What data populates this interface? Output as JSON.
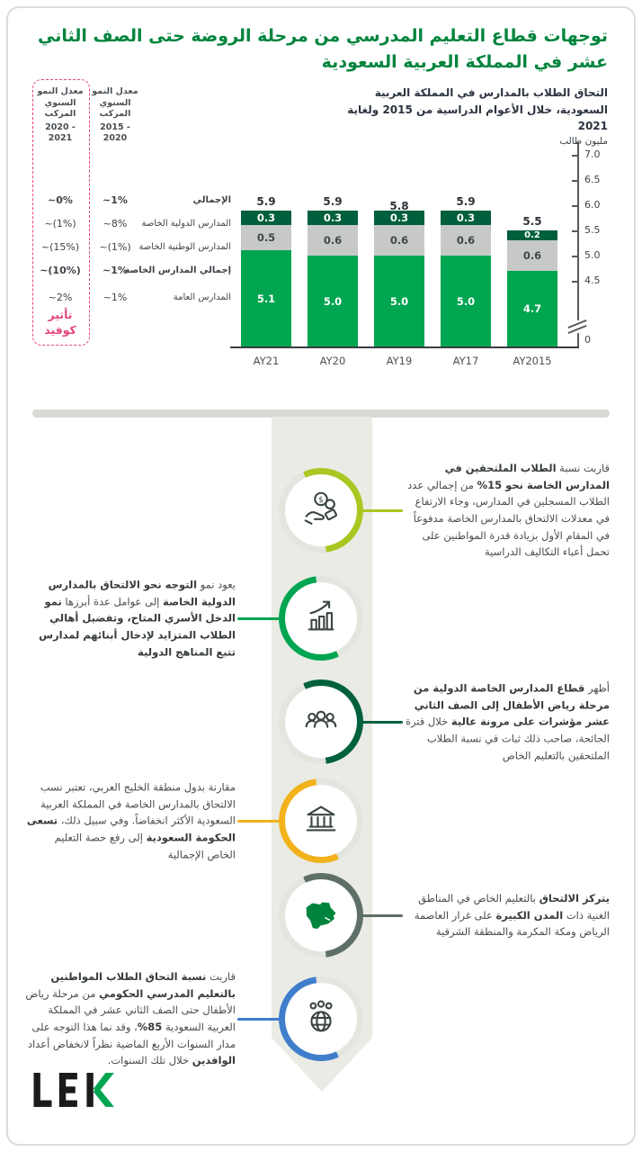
{
  "page": {
    "title": "توجهات قطاع التعليم المدرسي من مرحلة الروضة حتى الصف الثاني عشر في المملكة العربية السعودية"
  },
  "chart_data": {
    "type": "bar",
    "stacked": true,
    "title": "التحاق الطلاب بالمدارس في المملكة العربية السعودية، خلال الأعوام الدراسية من 2015 ولغاية 2021",
    "unit_label": "مليون طالب",
    "categories": [
      "AY21",
      "AY20",
      "AY19",
      "AY17",
      "AY2015"
    ],
    "series": [
      {
        "name": "المدارس العامة",
        "color": "#00A550",
        "label_color": "#ffffff",
        "values": [
          5.1,
          5.0,
          5.0,
          5.0,
          4.7
        ]
      },
      {
        "name": "المدارس الوطنية الخاصة",
        "color": "#C7C9C7",
        "label_color": "#40454A",
        "values": [
          0.5,
          0.6,
          0.6,
          0.6,
          0.6
        ]
      },
      {
        "name": "المدارس الدولية الخاصة",
        "color": "#005F3C",
        "label_color": "#ffffff",
        "values": [
          0.3,
          0.3,
          0.3,
          0.3,
          0.2
        ]
      }
    ],
    "totals": [
      5.9,
      5.9,
      5.8,
      5.9,
      5.5
    ],
    "y_axis": {
      "ticks": [
        7.0,
        6.5,
        6.0,
        5.5,
        5.0,
        4.5
      ],
      "zero_label": "0",
      "broken_axis": true,
      "side": "right"
    },
    "ylim_visible": [
      4.5,
      7.0
    ],
    "grid": false,
    "legend_position": "left-table-rows"
  },
  "cagr_table": {
    "columns": [
      {
        "id": "cagr_2020_2021",
        "header_title": "معدل النمو السنوي المركب",
        "period": "2020 - 2021",
        "highlight": true
      },
      {
        "id": "cagr_2015_2020",
        "header_title": "معدل النمو السنوي المركب",
        "period": "2015 - 2020",
        "highlight": false
      }
    ],
    "covid_label": "تأثير كوفيد",
    "rows": [
      {
        "label": "الإجمالي",
        "bold": true,
        "cagr_2020_2021": "~0%",
        "cagr_2015_2020": "~1%"
      },
      {
        "label": "المدارس الدولية الخاصة",
        "bold": false,
        "cagr_2020_2021": "~(1%)",
        "cagr_2015_2020": "~8%"
      },
      {
        "label": "المدارس الوطنية الخاصة",
        "bold": false,
        "cagr_2020_2021": "~(15%)",
        "cagr_2015_2020": "~(1%)"
      },
      {
        "label": "إجمالي المدارس الخاصة",
        "bold": true,
        "cagr_2020_2021": "~(10%)",
        "cagr_2015_2020": "~1%"
      },
      {
        "label": "المدارس العامة",
        "bold": false,
        "cagr_2020_2021": "~2%",
        "cagr_2015_2020": "~1%"
      }
    ]
  },
  "timeline": {
    "items": [
      {
        "icon": "coins-hand-icon",
        "ring_color": "#A9C722",
        "side": "right",
        "segments": [
          {
            "t": "قاربت نسبة ",
            "b": false
          },
          {
            "t": "الطلاب الملتحقين في المدارس الخاصة نحو 15%",
            "b": true
          },
          {
            "t": " من إجمالي عدد الطلاب المسجلين في المدارس، وجاء الارتفاع في معدلات الالتحاق بالمدارس الخاصة مدفوعاً في المقام الأول بزيادة قدرة المواطنين على تحمل أعباء التكاليف الدراسية",
            "b": false
          }
        ]
      },
      {
        "icon": "growth-chart-icon",
        "ring_color": "#00A551",
        "side": "left",
        "segments": [
          {
            "t": "يعود نمو ",
            "b": false
          },
          {
            "t": "التوجه نحو الالتحاق بالمدارس الدولية الخاصة",
            "b": true
          },
          {
            "t": " إلى عوامل عدة أبرزها ",
            "b": false
          },
          {
            "t": "نمو الدخل الأسري المتاح، وتفضيل أهالي الطلاب المتزايد لإدخال أبنائهم لمدارس تتبع المناهج الدولية",
            "b": true
          }
        ]
      },
      {
        "icon": "people-group-icon",
        "ring_color": "#00613C",
        "side": "right",
        "segments": [
          {
            "t": "أظهر ",
            "b": false
          },
          {
            "t": "قطاع المدارس الخاصة الدولية من مرحلة رياض الأطفال إلى الصف الثاني عشر مؤشرات على مرونة عالية",
            "b": true
          },
          {
            "t": " خلال فترة الجائحة، صاحب ذلك ثبات في نسبة الطلاب الملتحقين بالتعليم الخاص",
            "b": false
          }
        ]
      },
      {
        "icon": "school-building-icon",
        "ring_color": "#F2B21C",
        "side": "left",
        "segments": [
          {
            "t": "مقارنة بدول منطقة الخليج العربي، تعتبر نسب الالتحاق بالمدارس الخاصة في المملكة العربية السعودية الأكثر انخفاضاً. وفي سبيل ذلك، ",
            "b": false
          },
          {
            "t": "تسعى الحكومة السعودية",
            "b": true
          },
          {
            "t": " إلى رفع حصة التعليم الخاص الإجمالية",
            "b": false
          }
        ]
      },
      {
        "icon": "saudi-map-icon",
        "ring_color": "#5E6F67",
        "side": "right",
        "segments": [
          {
            "t": "يتركز الالتحاق",
            "b": true
          },
          {
            "t": " بالتعليم الخاص في المناطق الغنية ذات ",
            "b": false
          },
          {
            "t": "المدن الكبيرة",
            "b": true
          },
          {
            "t": " على غرار العاصمة الرياض ومكة المكرمة والمنطقة الشرقية",
            "b": false
          }
        ]
      },
      {
        "icon": "globe-community-icon",
        "ring_color": "#3E7ECB",
        "side": "left",
        "segments": [
          {
            "t": "قاربت ",
            "b": false
          },
          {
            "t": "نسبة التحاق الطلاب المواطنين بالتعليم المدرسي الحكومي",
            "b": true
          },
          {
            "t": " من مرحلة رياض الأطفال حتى الصف الثاني عشر في المملكة العربية السعودية ",
            "b": false
          },
          {
            "t": "85%",
            "b": true
          },
          {
            "t": "، وقد نما هذا التوجه على مدار السنوات الأربع الماضية نظراً لانخفاض أعداد ",
            "b": false
          },
          {
            "t": "الوافدين",
            "b": true
          },
          {
            "t": " خلال تلك السنوات.",
            "b": false
          }
        ]
      }
    ]
  },
  "footer": {
    "logo": "L.E.K"
  }
}
